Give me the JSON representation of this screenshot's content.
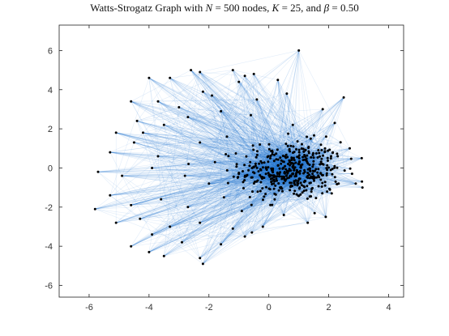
{
  "chart_data": {
    "type": "scatter",
    "title_parts": {
      "prefix": "Watts-Strogatz Graph with ",
      "n_sym": "N",
      "n_eq": " = 500 nodes, ",
      "k_sym": "K",
      "k_eq": " = 25, and ",
      "b_sym": "β",
      "b_eq": " = 0.50"
    },
    "xlabel": "",
    "ylabel": "",
    "xlim": [
      -7,
      4.5
    ],
    "ylim": [
      -6.6,
      7.3
    ],
    "xticks": [
      -6,
      -4,
      -2,
      0,
      2,
      4
    ],
    "yticks": [
      -6,
      -4,
      -2,
      0,
      2,
      4,
      6
    ],
    "xtick_labels": [
      "-6",
      "-4",
      "-2",
      "0",
      "2",
      "4"
    ],
    "ytick_labels": [
      "-6",
      "-4",
      "-2",
      "0",
      "2",
      "4",
      "6"
    ],
    "grid": false,
    "legend": "none",
    "node_count": 500,
    "K": 25,
    "beta": 0.5,
    "colors": {
      "node": "#000000",
      "edge": "#1f77d0",
      "axes": "#222222",
      "background": "#ffffff"
    },
    "outer_nodes": [
      [
        1.0,
        6.0
      ],
      [
        -4.0,
        4.6
      ],
      [
        -2.6,
        5.0
      ],
      [
        -2.3,
        4.9
      ],
      [
        -1.2,
        5.0
      ],
      [
        -0.8,
        4.7
      ],
      [
        -0.5,
        4.8
      ],
      [
        2.5,
        3.6
      ],
      [
        -3.3,
        4.6
      ],
      [
        -4.6,
        3.4
      ],
      [
        -3.7,
        3.4
      ],
      [
        -2.2,
        3.9
      ],
      [
        -1.9,
        3.7
      ],
      [
        -1.0,
        4.4
      ],
      [
        0.3,
        4.5
      ],
      [
        0.6,
        3.8
      ],
      [
        1.8,
        3.0
      ],
      [
        -5.1,
        1.8
      ],
      [
        -4.4,
        2.4
      ],
      [
        -3.5,
        2.2
      ],
      [
        -2.7,
        2.6
      ],
      [
        -1.6,
        2.9
      ],
      [
        -0.6,
        2.7
      ],
      [
        0.8,
        2.2
      ],
      [
        2.2,
        2.3
      ],
      [
        -5.3,
        0.8
      ],
      [
        -4.5,
        1.3
      ],
      [
        -3.7,
        0.6
      ],
      [
        -2.3,
        1.3
      ],
      [
        -1.4,
        1.6
      ],
      [
        -0.3,
        1.2
      ],
      [
        2.7,
        1.0
      ],
      [
        3.1,
        0.5
      ],
      [
        -5.7,
        -0.2
      ],
      [
        -4.9,
        -0.4
      ],
      [
        -3.9,
        0.0
      ],
      [
        -2.8,
        -0.4
      ],
      [
        -1.8,
        0.3
      ],
      [
        2.9,
        -0.8
      ],
      [
        -5.8,
        -2.1
      ],
      [
        -5.3,
        -1.4
      ],
      [
        -4.6,
        -1.9
      ],
      [
        -3.6,
        -1.6
      ],
      [
        -2.7,
        -2.0
      ],
      [
        -1.5,
        -1.5
      ],
      [
        -0.9,
        -2.2
      ],
      [
        -5.1,
        -2.8
      ],
      [
        -4.3,
        -2.6
      ],
      [
        -3.3,
        -3.0
      ],
      [
        -2.3,
        -2.8
      ],
      [
        -1.2,
        -3.1
      ],
      [
        -0.2,
        -3.0
      ],
      [
        -4.6,
        -4.0
      ],
      [
        -4.0,
        -4.3
      ],
      [
        -3.5,
        -4.5
      ],
      [
        -2.9,
        -3.8
      ],
      [
        -2.3,
        -4.6
      ],
      [
        -1.6,
        -3.9
      ],
      [
        -0.8,
        -3.5
      ],
      [
        -2.2,
        -4.9
      ],
      [
        0.5,
        -2.4
      ],
      [
        1.3,
        -2.8
      ],
      [
        1.9,
        -2.5
      ],
      [
        2.1,
        -1.3
      ],
      [
        -3.9,
        -3.4
      ],
      [
        -2.0,
        -0.8
      ],
      [
        -1.0,
        -0.3
      ],
      [
        -4.2,
        1.8
      ],
      [
        -3.0,
        3.1
      ],
      [
        -0.4,
        3.5
      ],
      [
        1.4,
        1.5
      ],
      [
        2.3,
        0.6
      ]
    ]
  }
}
